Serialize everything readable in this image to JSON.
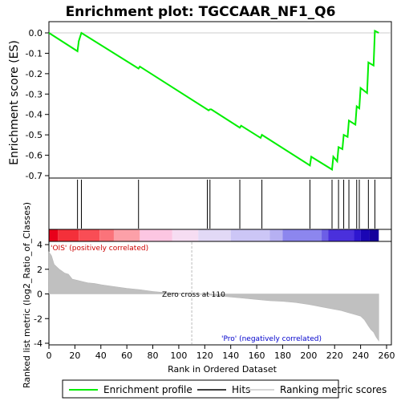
{
  "chart_data": {
    "type": "line",
    "title": "Enrichment plot: TGCCAAR_NF1_Q6",
    "ylabel_top": "Enrichment score (ES)",
    "ylabel_bottom": "Ranked list metric (log2_Ratio_of_Classes)",
    "xlabel": "Rank in Ordered Dataset",
    "xlim": [
      0,
      270
    ],
    "es_ylim": [
      -0.7,
      0.05
    ],
    "es_yticks": [
      "0.0",
      "-0.1",
      "-0.2",
      "-0.3",
      "-0.4",
      "-0.5",
      "-0.6",
      "-0.7"
    ],
    "metric_ylim": [
      -4,
      4
    ],
    "metric_yticks": [
      "4",
      "2",
      "0",
      "-2",
      "-4"
    ],
    "xticks": [
      "0",
      "20",
      "40",
      "60",
      "80",
      "100",
      "120",
      "140",
      "160",
      "180",
      "200",
      "220",
      "240",
      "260"
    ],
    "enrichment_profile": {
      "x": [
        0,
        22,
        23,
        25,
        69,
        70,
        123,
        124,
        125,
        147,
        148,
        163,
        164,
        201,
        202,
        218,
        219,
        222,
        223,
        226,
        227,
        230,
        231,
        236,
        237,
        239,
        240,
        245,
        246,
        250,
        251,
        254
      ],
      "y": [
        0.0,
        -0.09,
        -0.04,
        0.0,
        -0.175,
        -0.165,
        -0.38,
        -0.375,
        -0.375,
        -0.465,
        -0.455,
        -0.515,
        -0.5,
        -0.65,
        -0.607,
        -0.67,
        -0.607,
        -0.63,
        -0.56,
        -0.57,
        -0.5,
        -0.51,
        -0.43,
        -0.45,
        -0.36,
        -0.37,
        -0.27,
        -0.295,
        -0.145,
        -0.16,
        0.01,
        0.0
      ]
    },
    "hits": [
      22,
      25,
      69,
      122,
      124,
      147,
      164,
      201,
      218,
      223,
      227,
      231,
      237,
      239,
      246,
      251
    ],
    "metric_curve": {
      "x": [
        0,
        2,
        4,
        6,
        8,
        10,
        12,
        15,
        18,
        22,
        26,
        30,
        35,
        40,
        50,
        60,
        70,
        80,
        90,
        100,
        110,
        120,
        130,
        140,
        150,
        160,
        170,
        180,
        190,
        200,
        205,
        210,
        215,
        220,
        225,
        230,
        235,
        240,
        243,
        246,
        248,
        250,
        252,
        254
      ],
      "y": [
        3.4,
        3.1,
        2.4,
        2.2,
        2.0,
        1.85,
        1.7,
        1.6,
        1.2,
        1.1,
        1.0,
        0.9,
        0.85,
        0.75,
        0.6,
        0.45,
        0.35,
        0.2,
        0.1,
        0.05,
        0.0,
        -0.05,
        -0.15,
        -0.25,
        -0.35,
        -0.45,
        -0.55,
        -0.6,
        -0.7,
        -0.85,
        -0.95,
        -1.05,
        -1.15,
        -1.25,
        -1.35,
        -1.5,
        -1.65,
        -1.8,
        -2.1,
        -2.6,
        -2.9,
        -3.1,
        -3.5,
        -3.8
      ]
    },
    "zero_cross_rank": 110,
    "annotations": {
      "pos_label": "'OIS' (positively correlated)",
      "neg_label": "'Pro' (negatively correlated)",
      "zero_cross": "Zero cross at 110"
    },
    "heatbar_colors": [
      "#e8001a",
      "#f63a43",
      "#fb737a",
      "#fca8ac",
      "#fcd0e6",
      "#e9dcf6",
      "#d2cef8",
      "#b8b8f4",
      "#8c8cf0",
      "#5a50e6",
      "#2a1ad4",
      "#1200a0"
    ],
    "colors": {
      "profile": "#00ee00",
      "hits": "#000000",
      "metric": "#c0c0c0",
      "pos_label": "#cc0000",
      "neg_label": "#0000cc"
    },
    "legend": [
      {
        "label": "Enrichment profile",
        "color": "#00ee00"
      },
      {
        "label": "Hits",
        "color": "#000000"
      },
      {
        "label": "Ranking metric scores",
        "color": "#c8c8c8"
      }
    ]
  }
}
